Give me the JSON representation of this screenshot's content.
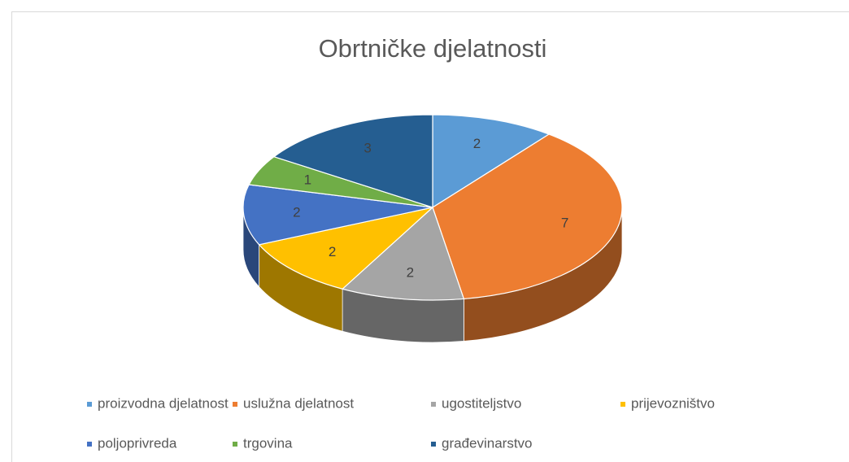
{
  "chart_data": {
    "type": "pie",
    "title": "Obrtničke djelatnosti",
    "categories": [
      "proizvodna djelatnost",
      "uslužna djelatnost",
      "ugostiteljstvo",
      "prijevozništvo",
      "poljoprivreda",
      "trgovina",
      "građevinarstvo"
    ],
    "values": [
      2,
      7,
      2,
      2,
      2,
      1,
      3
    ],
    "colors": [
      "#5b9bd5",
      "#ed7d31",
      "#a5a5a5",
      "#ffc000",
      "#4472c4",
      "#70ad47",
      "#255e91"
    ],
    "legend": "bottom"
  }
}
